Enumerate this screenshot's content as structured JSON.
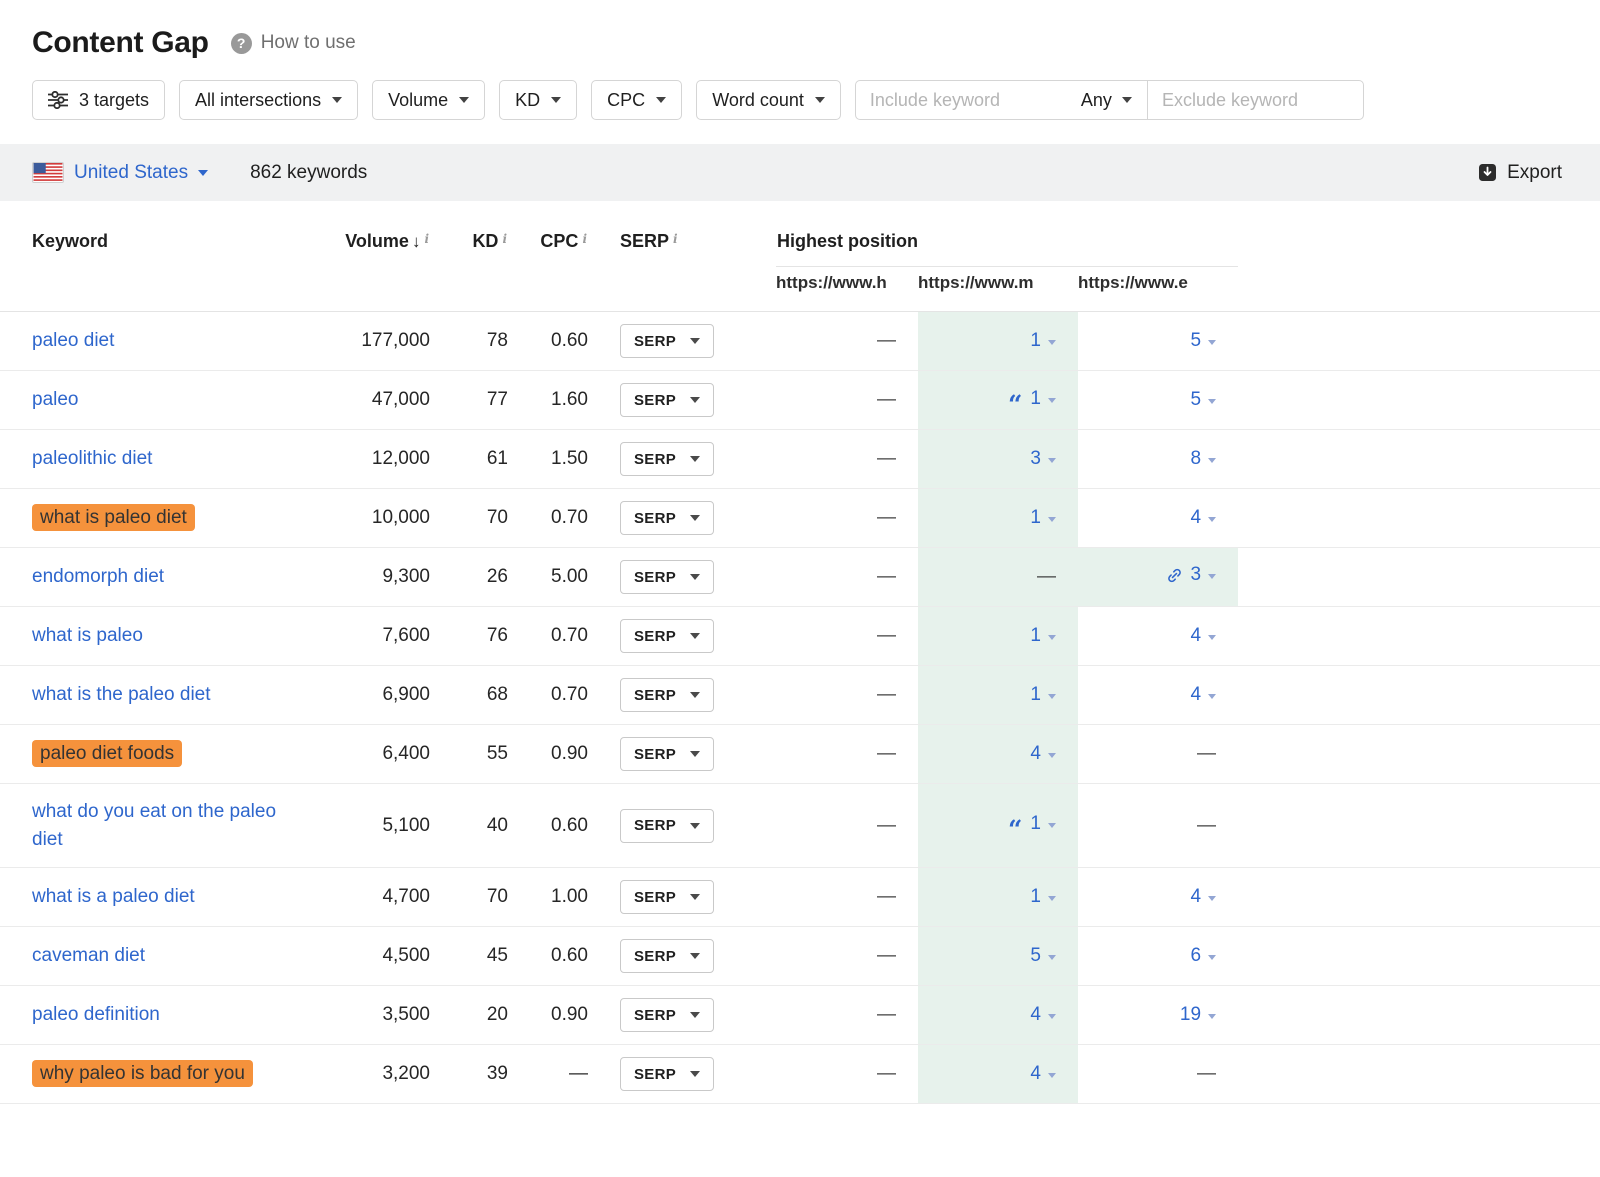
{
  "header": {
    "title": "Content Gap",
    "help_label": "How to use"
  },
  "filters": {
    "targets_label": "3 targets",
    "intersections_label": "All intersections",
    "volume_label": "Volume",
    "kd_label": "KD",
    "cpc_label": "CPC",
    "word_count_label": "Word count",
    "include_placeholder": "Include keyword",
    "any_label": "Any",
    "exclude_placeholder": "Exclude keyword"
  },
  "toolbar": {
    "country": "United States",
    "keyword_count": "862 keywords",
    "export_label": "Export"
  },
  "table": {
    "headers": {
      "keyword": "Keyword",
      "volume": "Volume",
      "kd": "KD",
      "cpc": "CPC",
      "serp": "SERP",
      "highest_position": "Highest position",
      "targets": [
        "https://www.h",
        "https://www.m",
        "https://www.e"
      ]
    },
    "serp_button_label": "SERP",
    "colors": {
      "link_blue": "#2e66cc",
      "highlight_orange": "#f5923c",
      "target_column_green": "#e7f2ec"
    },
    "rows": [
      {
        "keyword": "paleo diet",
        "highlighted": false,
        "volume": "177,000",
        "kd": "78",
        "cpc": "0.60",
        "positions": [
          {
            "value": "—"
          },
          {
            "value": "1"
          },
          {
            "value": "5"
          }
        ]
      },
      {
        "keyword": "paleo",
        "highlighted": false,
        "volume": "47,000",
        "kd": "77",
        "cpc": "1.60",
        "positions": [
          {
            "value": "—"
          },
          {
            "value": "1",
            "quote": true
          },
          {
            "value": "5"
          }
        ]
      },
      {
        "keyword": "paleolithic diet",
        "highlighted": false,
        "volume": "12,000",
        "kd": "61",
        "cpc": "1.50",
        "positions": [
          {
            "value": "—"
          },
          {
            "value": "3"
          },
          {
            "value": "8"
          }
        ]
      },
      {
        "keyword": "what is paleo diet",
        "highlighted": true,
        "volume": "10,000",
        "kd": "70",
        "cpc": "0.70",
        "positions": [
          {
            "value": "—"
          },
          {
            "value": "1"
          },
          {
            "value": "4"
          }
        ]
      },
      {
        "keyword": "endomorph diet",
        "highlighted": false,
        "volume": "9,300",
        "kd": "26",
        "cpc": "5.00",
        "positions": [
          {
            "value": "—"
          },
          {
            "value": "—"
          },
          {
            "value": "3",
            "link": true,
            "green": true
          }
        ]
      },
      {
        "keyword": "what is paleo",
        "highlighted": false,
        "volume": "7,600",
        "kd": "76",
        "cpc": "0.70",
        "positions": [
          {
            "value": "—"
          },
          {
            "value": "1"
          },
          {
            "value": "4"
          }
        ]
      },
      {
        "keyword": "what is the paleo diet",
        "highlighted": false,
        "volume": "6,900",
        "kd": "68",
        "cpc": "0.70",
        "positions": [
          {
            "value": "—"
          },
          {
            "value": "1"
          },
          {
            "value": "4"
          }
        ]
      },
      {
        "keyword": "paleo diet foods",
        "highlighted": true,
        "volume": "6,400",
        "kd": "55",
        "cpc": "0.90",
        "positions": [
          {
            "value": "—"
          },
          {
            "value": "4"
          },
          {
            "value": "—"
          }
        ]
      },
      {
        "keyword": "what do you eat on the paleo diet",
        "highlighted": false,
        "volume": "5,100",
        "kd": "40",
        "cpc": "0.60",
        "positions": [
          {
            "value": "—"
          },
          {
            "value": "1",
            "quote": true
          },
          {
            "value": "—"
          }
        ]
      },
      {
        "keyword": "what is a paleo diet",
        "highlighted": false,
        "volume": "4,700",
        "kd": "70",
        "cpc": "1.00",
        "positions": [
          {
            "value": "—"
          },
          {
            "value": "1"
          },
          {
            "value": "4"
          }
        ]
      },
      {
        "keyword": "caveman diet",
        "highlighted": false,
        "volume": "4,500",
        "kd": "45",
        "cpc": "0.60",
        "positions": [
          {
            "value": "—"
          },
          {
            "value": "5"
          },
          {
            "value": "6"
          }
        ]
      },
      {
        "keyword": "paleo definition",
        "highlighted": false,
        "volume": "3,500",
        "kd": "20",
        "cpc": "0.90",
        "positions": [
          {
            "value": "—"
          },
          {
            "value": "4"
          },
          {
            "value": "19"
          }
        ]
      },
      {
        "keyword": "why paleo is bad for you",
        "highlighted": true,
        "volume": "3,200",
        "kd": "39",
        "cpc": "—",
        "positions": [
          {
            "value": "—"
          },
          {
            "value": "4"
          },
          {
            "value": "—"
          }
        ]
      }
    ]
  }
}
